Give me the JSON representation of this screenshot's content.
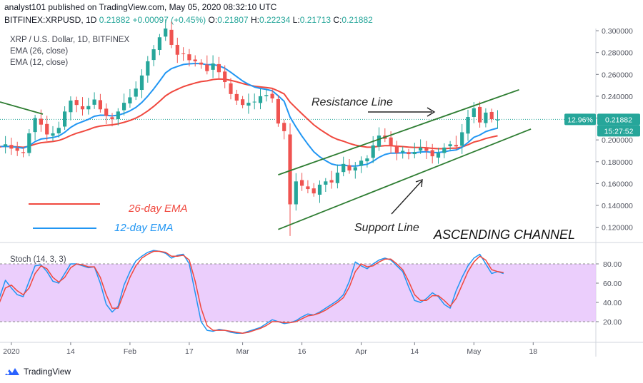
{
  "header": {
    "published": "analyst101 published on TradingView.com, May 05, 2020 08:32:10 UTC",
    "symbol": "BITFINEX:XRPUSD, 1D",
    "price": "0.21882",
    "change": "+0.00097 (+0.45%)",
    "o_label": "O:",
    "o_value": "0.21807",
    "h_label": "H:",
    "h_value": "0.22234",
    "l_label": "L:",
    "l_value": "0.21713",
    "c_label": "C:",
    "c_value": "0.21882"
  },
  "legend": {
    "title": "XRP / U.S. Dollar, 1D, BITFINEX",
    "ema26": "EMA (26, close)",
    "ema12": "EMA (12, close)",
    "stoch": "Stoch (14, 3, 3)"
  },
  "annotations": {
    "resistance": "Resistance Line",
    "support": "Support Line",
    "channel": "ASCENDING CHANNEL",
    "ema26_label": "26-day EMA",
    "ema12_label": "12-day EMA"
  },
  "price_badges": {
    "percent": "12.96%",
    "price": "0.21882",
    "countdown": "15:27:52"
  },
  "footer": {
    "brand": "TradingView"
  },
  "colors": {
    "up": "#26a69a",
    "down": "#ef5350",
    "ema26": "#f0483e",
    "ema12": "#2196f3",
    "stoch_k": "#2196f3",
    "stoch_d": "#f0483e",
    "channel": "#2e7d32",
    "stoch_band": "#e7c6fb"
  },
  "chart_data": [
    {
      "type": "candlestick",
      "title": "XRP / U.S. Dollar, 1D, BITFINEX",
      "y_range": [
        0.108,
        0.302
      ],
      "y_ticks": [
        "0.300000",
        "0.280000",
        "0.260000",
        "0.240000",
        "0.220000",
        "0.200000",
        "0.180000",
        "0.160000",
        "0.140000",
        "0.120000"
      ],
      "y_tick_values": [
        0.3,
        0.28,
        0.26,
        0.24,
        0.22,
        0.2,
        0.18,
        0.16,
        0.14,
        0.12
      ],
      "x_ticks": [
        {
          "label": "2020",
          "day": 3
        },
        {
          "label": "14",
          "day": 13
        },
        {
          "label": "Feb",
          "day": 23
        },
        {
          "label": "17",
          "day": 33
        },
        {
          "label": "Mar",
          "day": 42
        },
        {
          "label": "16",
          "day": 52
        },
        {
          "label": "Apr",
          "day": 62
        },
        {
          "label": "14",
          "day": 71
        },
        {
          "label": "May",
          "day": 81
        },
        {
          "label": "18",
          "day": 91
        }
      ],
      "close": [
        0.194,
        0.193,
        0.196,
        0.192,
        0.19,
        0.188,
        0.206,
        0.22,
        0.214,
        0.205,
        0.206,
        0.211,
        0.226,
        0.236,
        0.232,
        0.228,
        0.231,
        0.237,
        0.228,
        0.222,
        0.219,
        0.226,
        0.234,
        0.239,
        0.247,
        0.259,
        0.272,
        0.283,
        0.294,
        0.302,
        0.287,
        0.278,
        0.279,
        0.273,
        0.272,
        0.269,
        0.263,
        0.27,
        0.262,
        0.253,
        0.242,
        0.236,
        0.232,
        0.234,
        0.235,
        0.24,
        0.241,
        0.238,
        0.215,
        0.208,
        0.141,
        0.162,
        0.158,
        0.155,
        0.151,
        0.159,
        0.162,
        0.161,
        0.17,
        0.178,
        0.172,
        0.175,
        0.181,
        0.183,
        0.195,
        0.204,
        0.201,
        0.195,
        0.188,
        0.19,
        0.187,
        0.189,
        0.193,
        0.19,
        0.185,
        0.188,
        0.193,
        0.196,
        0.194,
        0.207,
        0.221,
        0.229,
        0.216,
        0.225,
        0.219,
        0.2188
      ],
      "series": [
        {
          "name": "EMA (26, close)",
          "values": [
            0.2
          ],
          "note": "computed"
        },
        {
          "name": "EMA (12, close)",
          "values": [
            0.2
          ],
          "note": "computed"
        }
      ],
      "trendlines": [
        {
          "name": "Resistance Line",
          "points": [
            [
              48,
              0.168
            ],
            [
              85,
              0.242
            ]
          ]
        },
        {
          "name": "Support Line",
          "points": [
            [
              48,
              0.118
            ],
            [
              87,
              0.208
            ]
          ]
        }
      ]
    },
    {
      "type": "line",
      "title": "Stoch (14, 3, 3)",
      "y_range": [
        0,
        100
      ],
      "y_ticks": [
        "80.00",
        "60.00",
        "40.00",
        "20.00"
      ],
      "y_tick_values": [
        80,
        60,
        40,
        20
      ],
      "band": [
        20,
        80
      ],
      "series": [
        {
          "name": "%K",
          "values": [
            32,
            45,
            63,
            55,
            48,
            46,
            62,
            78,
            79,
            72,
            62,
            60,
            70,
            80,
            80,
            78,
            76,
            77,
            60,
            38,
            30,
            36,
            58,
            72,
            83,
            88,
            92,
            94,
            93,
            91,
            86,
            89,
            90,
            80,
            50,
            20,
            11,
            10,
            12,
            11,
            9,
            8,
            8,
            10,
            12,
            14,
            18,
            22,
            20,
            18,
            19,
            21,
            25,
            28,
            27,
            30,
            34,
            38,
            42,
            48,
            62,
            82,
            78,
            75,
            80,
            84,
            86,
            84,
            78,
            72,
            56,
            42,
            40,
            44,
            50,
            46,
            38,
            34,
            52,
            66,
            78,
            86,
            90,
            80,
            70,
            72,
            70
          ]
        },
        {
          "name": "%D",
          "values": [
            34,
            40,
            55,
            58,
            52,
            48,
            55,
            70,
            78,
            75,
            66,
            61,
            66,
            76,
            80,
            79,
            77,
            77,
            66,
            48,
            34,
            34,
            50,
            66,
            78,
            86,
            90,
            93,
            93,
            92,
            88,
            88,
            89,
            84,
            62,
            34,
            16,
            11,
            11,
            11,
            10,
            9,
            8,
            9,
            11,
            13,
            16,
            20,
            20,
            19,
            19,
            20,
            23,
            26,
            27,
            29,
            32,
            36,
            40,
            45,
            56,
            72,
            80,
            77,
            78,
            82,
            85,
            85,
            80,
            74,
            62,
            48,
            42,
            42,
            47,
            47,
            42,
            36,
            44,
            58,
            72,
            82,
            88,
            84,
            74,
            72,
            71
          ]
        }
      ]
    }
  ]
}
